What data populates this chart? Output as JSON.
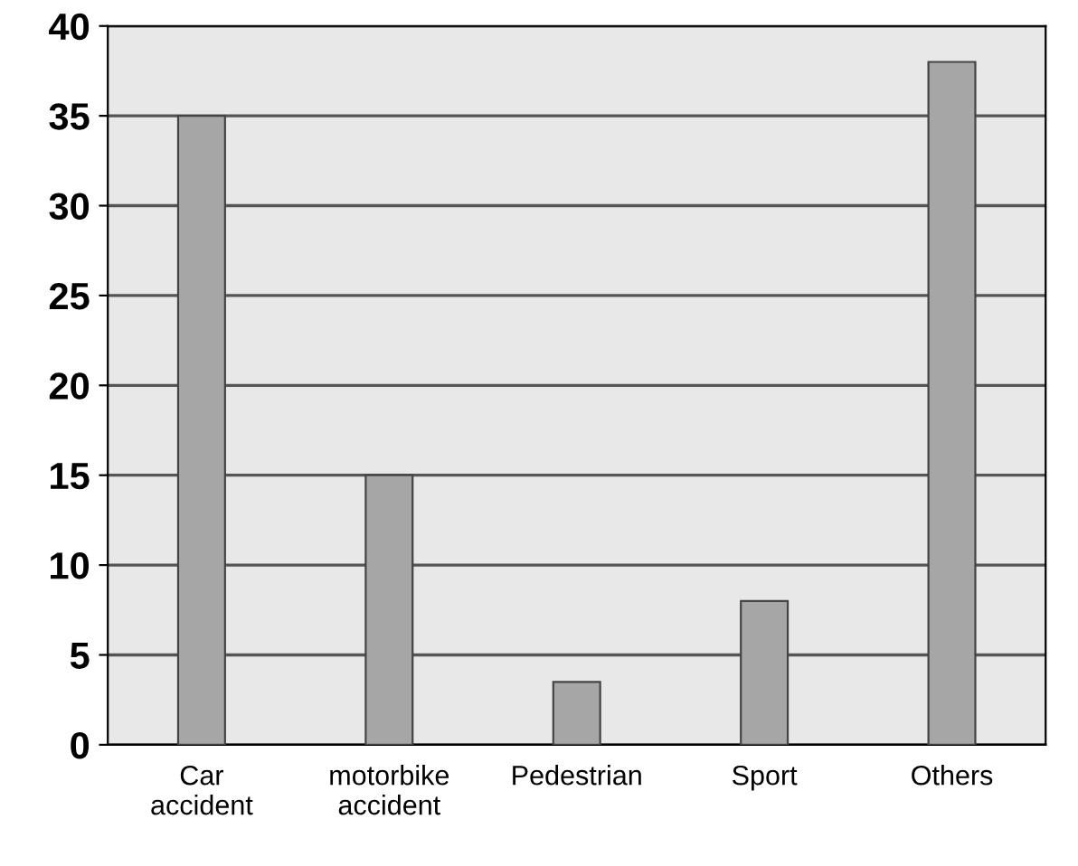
{
  "chart_data": {
    "type": "bar",
    "categories": [
      "Car\naccident",
      "motorbike\naccident",
      "Pedestrian",
      "Sport",
      "Others"
    ],
    "values": [
      35,
      15,
      3.5,
      8,
      38
    ],
    "color": "#a6a6a6",
    "ylim": [
      0,
      40
    ],
    "yticks": [
      0,
      5,
      10,
      15,
      20,
      25,
      30,
      35,
      40
    ],
    "grid": "y"
  }
}
